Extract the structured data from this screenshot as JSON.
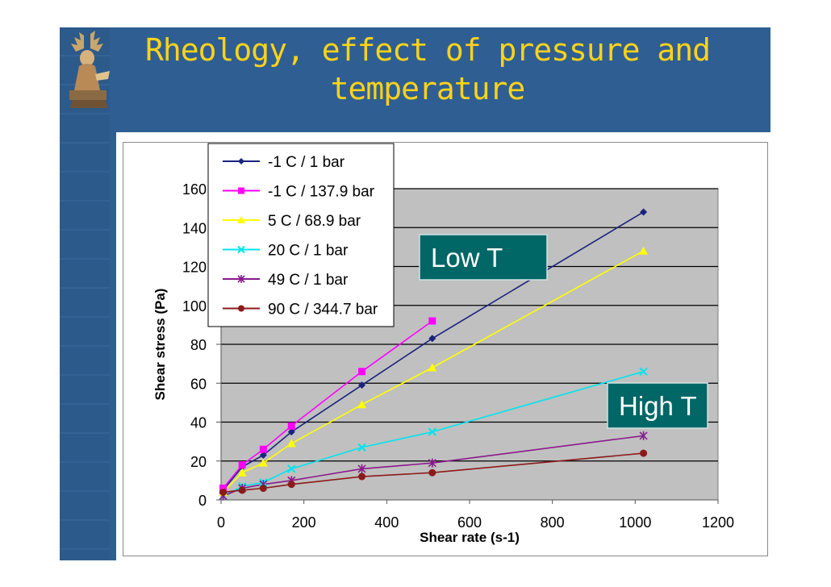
{
  "slide": {
    "title_line1": "Rheology, effect of pressure and",
    "title_line2": "temperature",
    "bg_color": "#2f5f92",
    "title_color": "#ffd21a",
    "logo_icon": "seal-logo-icon"
  },
  "chart_data": {
    "type": "line",
    "xlabel": "Shear rate (s-1)",
    "ylabel": "Shear stress (Pa)",
    "xlim": [
      0,
      1200
    ],
    "ylim": [
      0,
      160
    ],
    "xticks": [
      0,
      200,
      400,
      600,
      800,
      1000,
      1200
    ],
    "yticks": [
      0,
      20,
      40,
      60,
      80,
      100,
      120,
      140,
      160
    ],
    "grid": "horizontal",
    "plot_bg": "#c0c0c0",
    "legend_position": "top-left",
    "series": [
      {
        "name": "-1 C / 1 bar",
        "color": "#1a237e",
        "marker": "diamond",
        "x": [
          5,
          51,
          102,
          170,
          340,
          510,
          1020
        ],
        "y": [
          5,
          17,
          23,
          35,
          59,
          83,
          148
        ]
      },
      {
        "name": "-1 C / 137.9 bar",
        "color": "#ff00ff",
        "marker": "square",
        "x": [
          5,
          51,
          102,
          170,
          340,
          510
        ],
        "y": [
          6,
          18,
          26,
          38,
          66,
          92
        ]
      },
      {
        "name": "5 C / 68.9 bar",
        "color": "#ffff00",
        "marker": "triangle",
        "x": [
          5,
          51,
          102,
          170,
          340,
          510,
          1020
        ],
        "y": [
          4,
          14,
          19,
          29,
          49,
          68,
          128
        ]
      },
      {
        "name": "20 C / 1 bar",
        "color": "#00e5ee",
        "marker": "x",
        "x": [
          5,
          51,
          102,
          170,
          340,
          510,
          1020
        ],
        "y": [
          2,
          7,
          9,
          16,
          27,
          35,
          66
        ]
      },
      {
        "name": "49 C / 1 bar",
        "color": "#8b1a8b",
        "marker": "star",
        "x": [
          5,
          51,
          102,
          170,
          340,
          510,
          1020
        ],
        "y": [
          2,
          6,
          8,
          10,
          16,
          19,
          33
        ]
      },
      {
        "name": "90 C / 344.7 bar",
        "color": "#8b1a1a",
        "marker": "circle",
        "x": [
          5,
          51,
          102,
          170,
          340,
          510,
          1020
        ],
        "y": [
          4,
          5,
          6,
          8,
          12,
          14,
          24
        ]
      }
    ],
    "annotations": [
      {
        "text": "Low T",
        "color": "#006666"
      },
      {
        "text": "High T",
        "color": "#006666"
      }
    ]
  }
}
